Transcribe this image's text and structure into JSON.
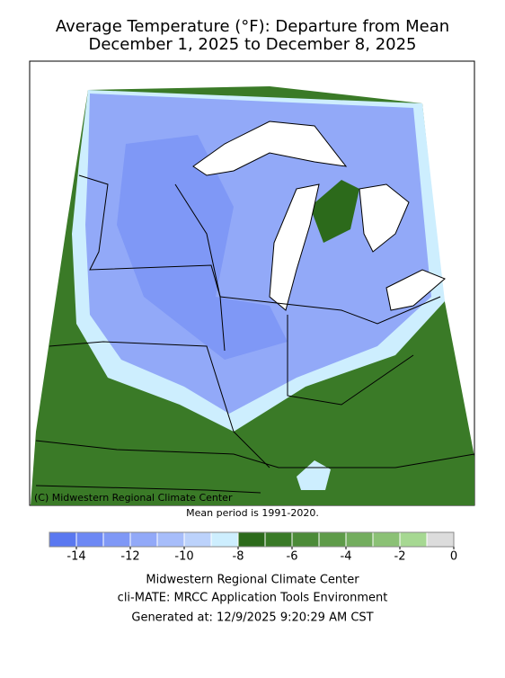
{
  "header": {
    "title_line1": "Average Temperature (°F): Departure from Mean",
    "title_line2": "December 1, 2025 to December 8, 2025"
  },
  "map": {
    "copyright": "(C) Midwestern Regional Climate Center"
  },
  "note": "Mean period is 1991-2020.",
  "colorbar": {
    "range": [
      -15,
      0
    ],
    "ticks": [
      -14,
      -12,
      -10,
      -8,
      -6,
      -4,
      -2,
      0
    ],
    "colors": [
      "#5a78f0",
      "#6d88f4",
      "#7f98f6",
      "#92a9f8",
      "#a7bdfa",
      "#bcd2fb",
      "#cdeefe",
      "#2c6a1b",
      "#397a27",
      "#4c8b38",
      "#5e9b49",
      "#73ad5e",
      "#8bc175",
      "#a6d892",
      "#dcdcdc"
    ]
  },
  "footer": {
    "line1": "Midwestern Regional Climate Center",
    "line2": "cli-MATE: MRCC Application Tools Environment",
    "line3": "Generated at: 12/9/2025 9:20:29 AM CST"
  }
}
